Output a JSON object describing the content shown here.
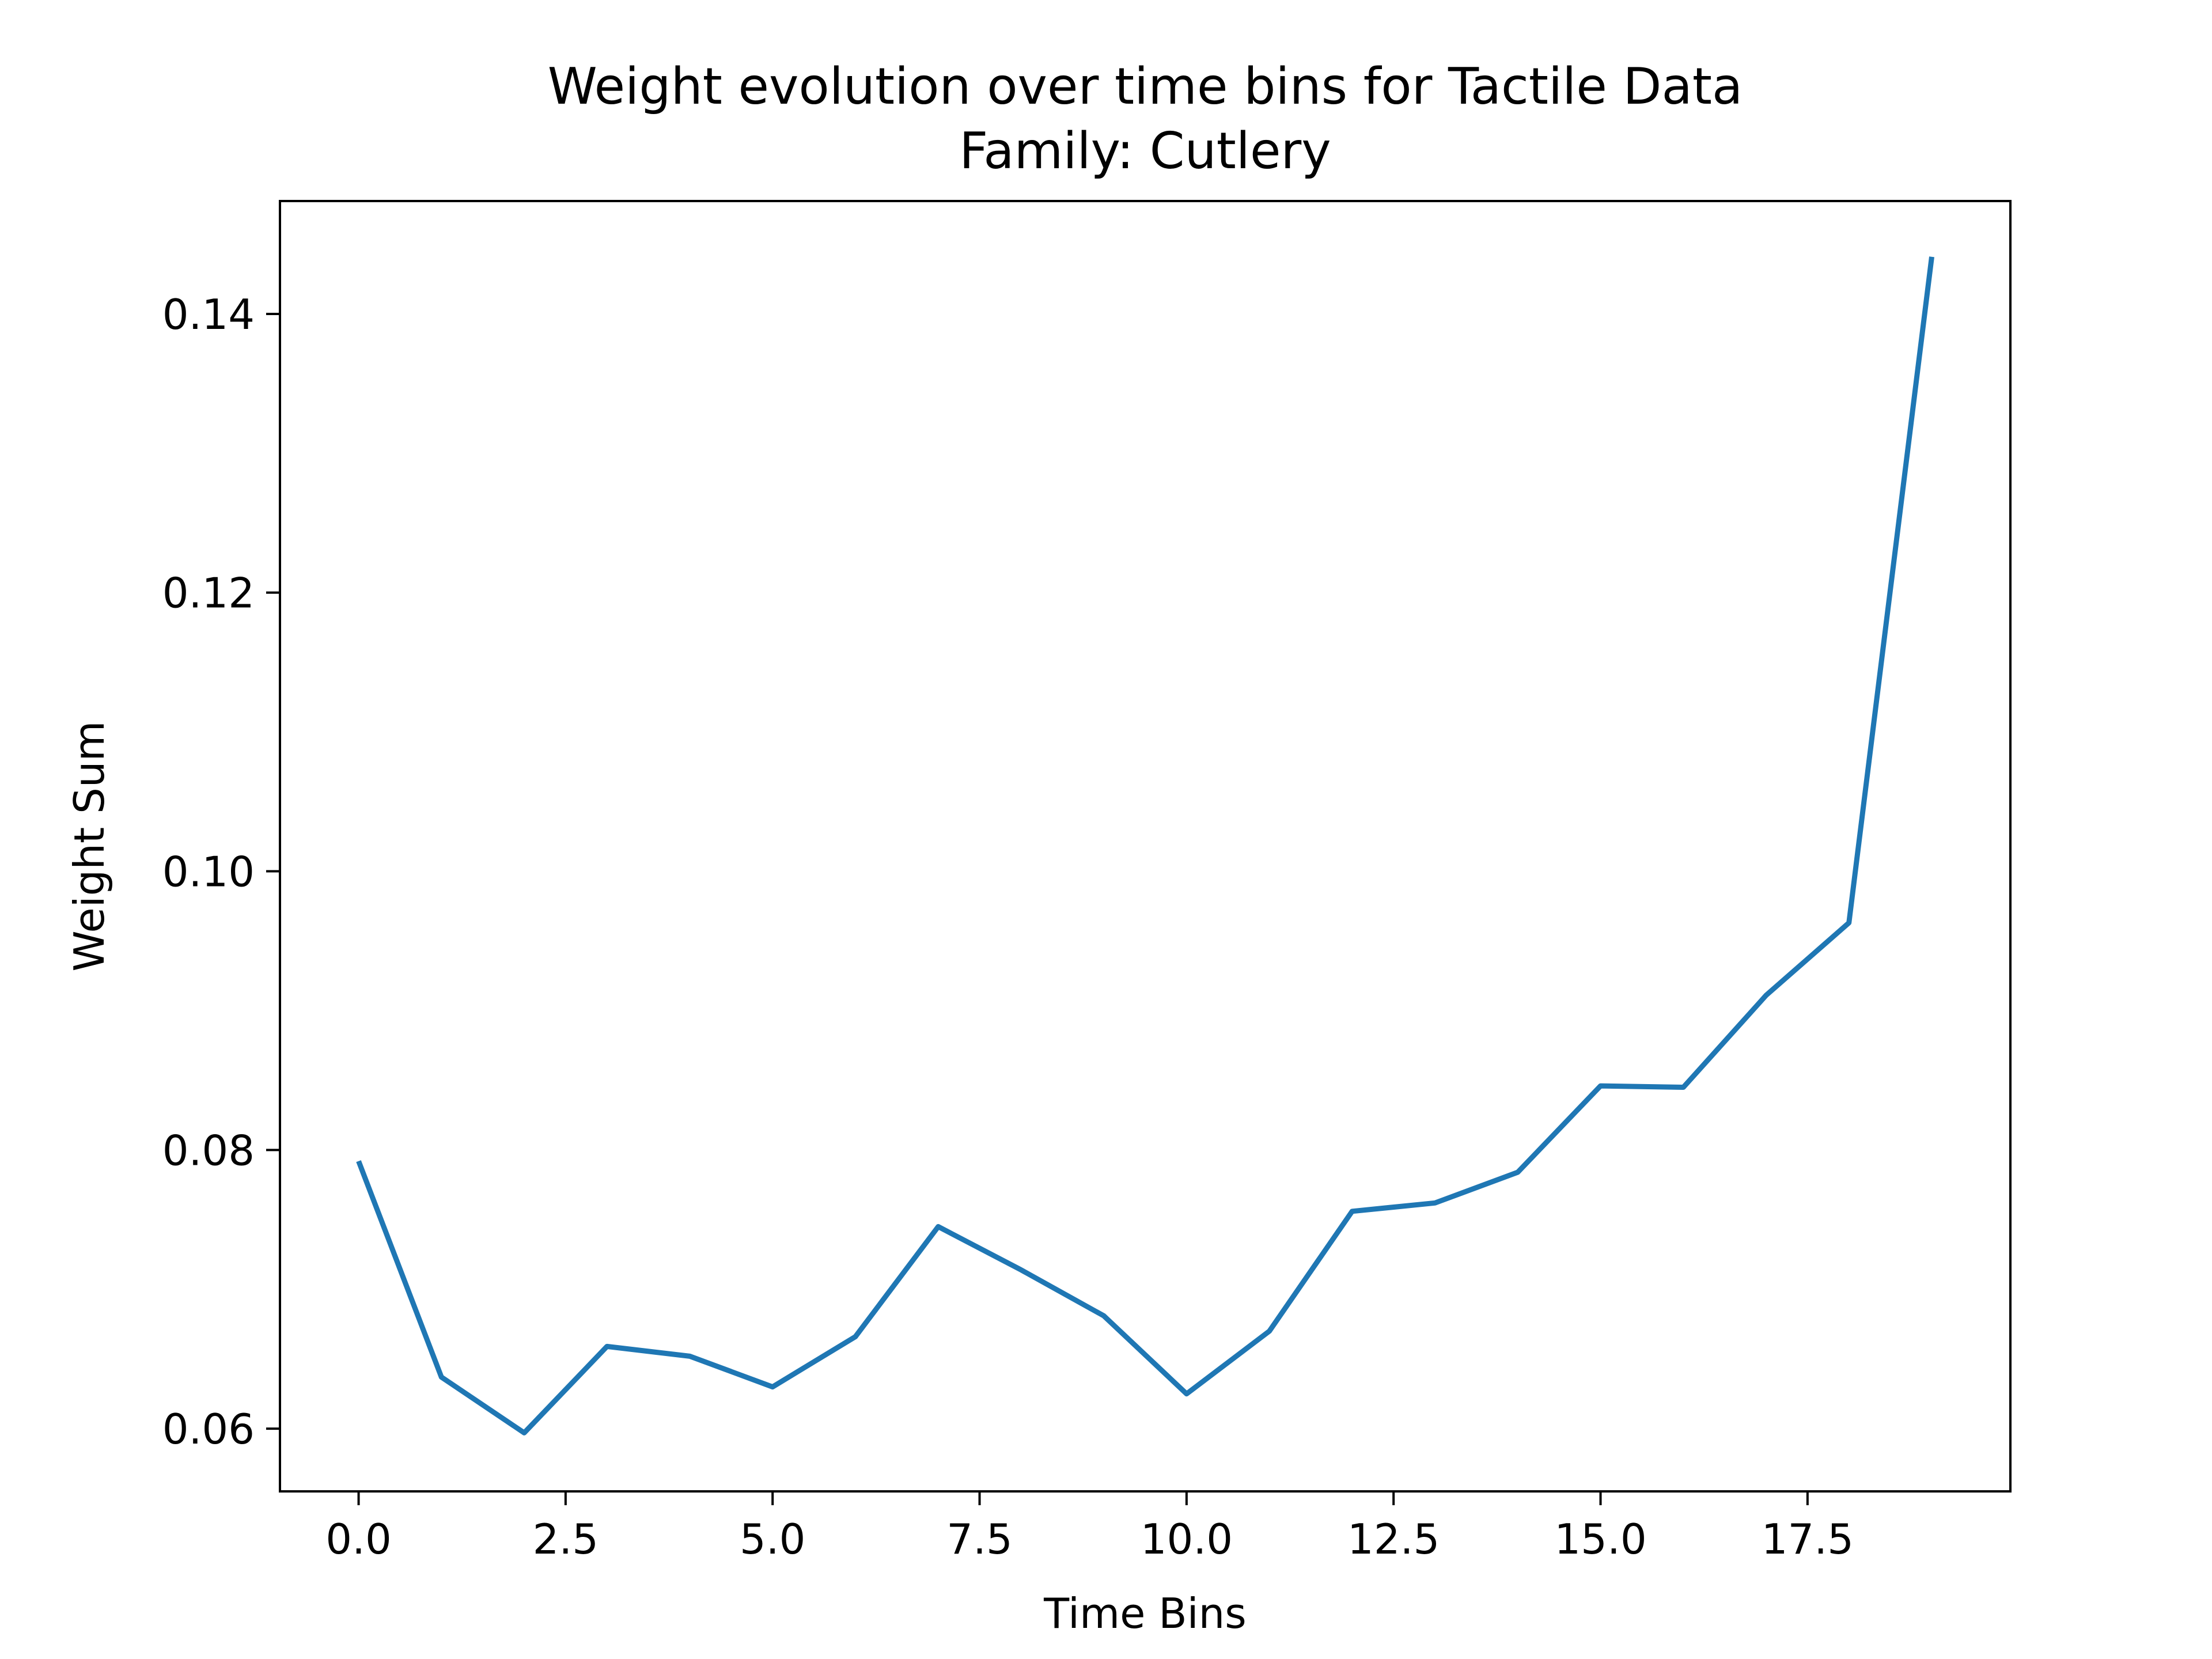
{
  "chart_data": {
    "type": "line",
    "title": "Weight evolution over time bins for Tactile Data",
    "subtitle": "Family: Cutlery",
    "xlabel": "Time Bins",
    "ylabel": "Weight Sum",
    "xlim": [
      -0.95,
      19.95
    ],
    "ylim": [
      0.0555,
      0.1481
    ],
    "x_ticks": [
      0.0,
      2.5,
      5.0,
      7.5,
      10.0,
      12.5,
      15.0,
      17.5
    ],
    "x_tick_labels": [
      "0.0",
      "2.5",
      "5.0",
      "7.5",
      "10.0",
      "12.5",
      "15.0",
      "17.5"
    ],
    "y_ticks": [
      0.06,
      0.08,
      0.1,
      0.12,
      0.14
    ],
    "y_tick_labels": [
      "0.06",
      "0.08",
      "0.10",
      "0.12",
      "0.14"
    ],
    "grid": false,
    "series": [
      {
        "color": "#1f77b4",
        "x": [
          0,
          1,
          2,
          3,
          4,
          5,
          6,
          7,
          8,
          9,
          10,
          11,
          12,
          13,
          14,
          15,
          16,
          17,
          18,
          19
        ],
        "y": [
          0.0792,
          0.0637,
          0.0597,
          0.0659,
          0.0652,
          0.063,
          0.0666,
          0.0745,
          0.0714,
          0.0681,
          0.0625,
          0.067,
          0.0756,
          0.0762,
          0.0784,
          0.0846,
          0.0845,
          0.0911,
          0.0963,
          0.1441
        ]
      }
    ]
  }
}
